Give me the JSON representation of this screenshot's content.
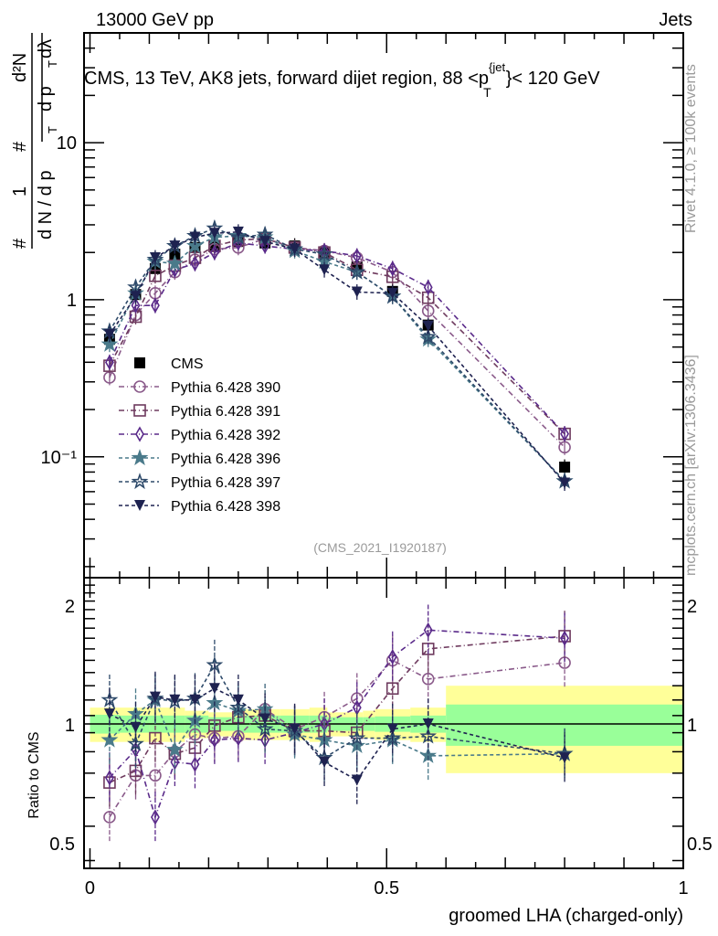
{
  "header": {
    "left": "13000 GeV pp",
    "right": "Jets"
  },
  "side_labels": {
    "rivet": "Rivet 4.1.0, ≥ 100k events",
    "mcplots": "mcplots.cern.ch [arXiv:1306.3436]"
  },
  "chart_data": [
    {
      "type": "line",
      "panel": "main",
      "title": "CMS, 13 TeV, AK8 jets, forward dijet region, 88 <p_T^{jet}< 120 GeV",
      "title_parts": {
        "pre": "CMS, 13 TeV, AK8 jets, forward dijet region, 88 <p",
        "sup": "{jet",
        "sub": "T",
        "post": "}< 120 GeV"
      },
      "watermark": "(CMS_2021_I1920187)",
      "ylabel": "1/N dN/dp_T d²N/dp_T dλ",
      "ylabel_parts": {
        "hash": "#",
        "one": "1",
        "dN": "d N / d p",
        "T": "T",
        "d2N": "d²N",
        "dpT": "d p",
        "dl": "dλ"
      },
      "yscale": "log",
      "ylim": [
        0.017,
        50
      ],
      "xlim": [
        -0.01,
        1.0
      ],
      "yticks": [
        {
          "value": 0.1,
          "label": "10⁻¹"
        },
        {
          "value": 1,
          "label": "1"
        },
        {
          "value": 10,
          "label": "10"
        }
      ],
      "x": [
        0.033,
        0.077,
        0.11,
        0.143,
        0.177,
        0.21,
        0.25,
        0.295,
        0.345,
        0.395,
        0.45,
        0.51,
        0.57,
        0.8
      ],
      "legend_position": "center-left",
      "series": [
        {
          "name": "CMS",
          "marker": "square-filled",
          "color": "#000000",
          "dash": "none",
          "values": [
            0.56,
            1.08,
            1.58,
            1.95,
            2.15,
            2.2,
            2.35,
            2.3,
            2.2,
            2.0,
            1.62,
            1.13,
            0.69,
            0.086
          ]
        },
        {
          "name": "Pythia 6.428 390",
          "marker": "circle-open",
          "color": "#8a5a8a",
          "dash": "6,3,1,3",
          "values": [
            0.32,
            0.8,
            1.1,
            1.5,
            1.8,
            2.1,
            2.15,
            2.45,
            2.15,
            2.05,
            1.85,
            1.5,
            0.85,
            0.115
          ]
        },
        {
          "name": "Pythia 6.428 391",
          "marker": "square-open",
          "color": "#6e3a5e",
          "dash": "6,3,1,3",
          "values": [
            0.38,
            0.78,
            1.42,
            1.65,
            1.85,
            2.2,
            2.4,
            2.45,
            2.15,
            2.0,
            1.55,
            1.4,
            1.03,
            0.14
          ]
        },
        {
          "name": "Pythia 6.428 392",
          "marker": "diamond-open",
          "color": "#5a2a8a",
          "dash": "6,3,1,3",
          "values": [
            0.4,
            0.92,
            0.92,
            1.55,
            1.7,
            2.0,
            2.3,
            2.2,
            2.1,
            2.05,
            1.9,
            1.58,
            1.2,
            0.14
          ]
        },
        {
          "name": "Pythia 6.428 396",
          "marker": "star-filled",
          "color": "#4a7a8a",
          "dash": "4,3",
          "values": [
            0.52,
            1.1,
            1.75,
            1.7,
            2.2,
            2.5,
            2.55,
            2.5,
            2.05,
            1.75,
            1.5,
            1.05,
            0.56,
            0.07
          ]
        },
        {
          "name": "Pythia 6.428 397",
          "marker": "star-open",
          "color": "#2e4a6a",
          "dash": "4,3",
          "values": [
            0.63,
            1.2,
            1.8,
            2.2,
            2.55,
            2.85,
            2.5,
            2.6,
            2.1,
            1.95,
            1.5,
            1.05,
            0.58,
            0.07
          ]
        },
        {
          "name": "Pythia 6.428 398",
          "marker": "triangle-down-filled",
          "color": "#1e2250",
          "dash": "4,3",
          "values": [
            0.6,
            1.05,
            1.85,
            2.2,
            2.5,
            2.65,
            2.7,
            2.35,
            2.1,
            1.55,
            1.12,
            1.1,
            0.68,
            0.068
          ]
        }
      ]
    },
    {
      "type": "line",
      "panel": "ratio",
      "ylabel": "Ratio to CMS",
      "xlabel": "groomed LHA (charged-only)",
      "yscale": "log",
      "ylim": [
        0.43,
        2.35
      ],
      "xlim": [
        -0.01,
        1.0
      ],
      "yticks": [
        {
          "value": 0.5,
          "label": "0.5"
        },
        {
          "value": 1,
          "label": "1"
        },
        {
          "value": 2,
          "label": "2"
        }
      ],
      "xticks": [
        {
          "value": 0,
          "label": "0"
        },
        {
          "value": 0.5,
          "label": "0.5"
        },
        {
          "value": 1,
          "label": "1"
        }
      ],
      "reference_line": 1,
      "bands": {
        "edges": [
          0.0,
          0.05,
          0.1,
          0.16,
          0.2,
          0.25,
          0.32,
          0.37,
          0.4,
          0.46,
          0.48,
          0.54,
          0.6,
          1.0
        ],
        "inner": [
          0.055,
          0.05,
          0.05,
          0.05,
          0.04,
          0.05,
          0.05,
          0.05,
          0.04,
          0.04,
          0.045,
          0.05,
          0.12
        ],
        "outer": [
          0.1,
          0.1,
          0.1,
          0.08,
          0.07,
          0.09,
          0.09,
          0.1,
          0.07,
          0.08,
          0.09,
          0.1,
          0.25
        ],
        "inner_color": "#99ff99",
        "outer_color": "#ffff99"
      },
      "x": [
        0.033,
        0.077,
        0.11,
        0.143,
        0.177,
        0.21,
        0.25,
        0.295,
        0.345,
        0.395,
        0.45,
        0.51,
        0.57,
        0.8
      ],
      "series": [
        {
          "name": "Pythia 6.428 390",
          "values": [
            0.58,
            0.74,
            0.74,
            0.85,
            0.94,
            0.92,
            0.93,
            1.09,
            0.97,
            1.04,
            1.16,
            1.45,
            1.3,
            1.43
          ]
        },
        {
          "name": "Pythia 6.428 391",
          "values": [
            0.71,
            0.76,
            0.92,
            0.84,
            0.87,
            0.99,
            1.04,
            1.05,
            0.96,
            0.96,
            0.95,
            1.23,
            1.55,
            1.67
          ]
        },
        {
          "name": "Pythia 6.428 392",
          "values": [
            0.73,
            0.86,
            0.58,
            0.8,
            0.79,
            0.91,
            0.92,
            0.91,
            0.95,
            1.0,
            1.1,
            1.48,
            1.73,
            1.65
          ]
        },
        {
          "name": "Pythia 6.428 396",
          "values": [
            0.91,
            1.06,
            1.15,
            0.86,
            1.02,
            1.13,
            1.08,
            1.09,
            0.94,
            0.91,
            0.88,
            0.91,
            0.83,
            0.84
          ]
        },
        {
          "name": "Pythia 6.428 397",
          "values": [
            1.15,
            0.89,
            1.16,
            1.14,
            1.16,
            1.41,
            1.1,
            0.97,
            0.96,
            0.82,
            0.92,
            0.92,
            0.93,
            0.84
          ]
        },
        {
          "name": "Pythia 6.428 398",
          "values": [
            1.06,
            0.98,
            1.17,
            1.15,
            1.15,
            1.23,
            1.15,
            1.03,
            0.97,
            0.8,
            0.72,
            0.97,
            1.0,
            0.82
          ]
        }
      ]
    }
  ]
}
